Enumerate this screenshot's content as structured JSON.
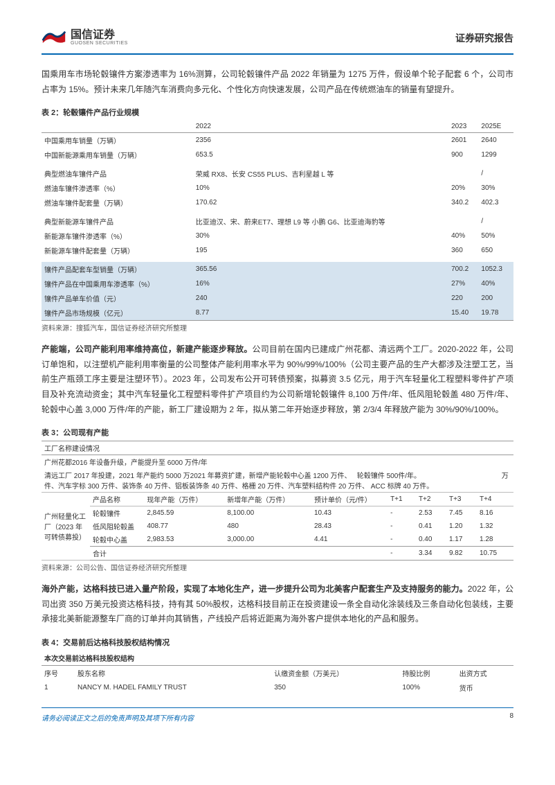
{
  "header": {
    "brand_cn": "国信证券",
    "brand_en": "GUOSEN SECURITIES",
    "report_type": "证券研究报告"
  },
  "p1": "国乘用车市场轮毂镶件方案渗透率为 16%测算，公司轮毂镶件产品 2022 年销量为 1275 万件，假设单个轮子配套 6 个，公司市占率为 15%。预计未来几年随汽车消费向多元化、个性化方向快速发展，公司产品在传统燃油车的销量有望提升。",
  "t2": {
    "title": "表 2：轮毂镶件产品行业规模",
    "cols": [
      "",
      "2022",
      "2023",
      "2025E"
    ],
    "rows1": [
      [
        "中国乘用车销量（万辆）",
        "2356",
        "2601",
        "2640"
      ],
      [
        "中国新能源乘用车销量（万辆）",
        "653.5",
        "900",
        "1299"
      ]
    ],
    "rows2": [
      [
        "典型燃油车镶件产品",
        "荣威 RX8、长安 CS55  PLUS、吉利星越 L 等",
        "",
        "/"
      ],
      [
        "燃油车镶件渗透率（%）",
        "10%",
        "20%",
        "30%"
      ],
      [
        "燃油车镶件配套量（万辆）",
        "170.62",
        "340.2",
        "402.3"
      ]
    ],
    "rows3": [
      [
        "典型新能源车镶件产品",
        "比亚迪汉、宋、蔚来ET7、理想 L9 等 小鹏 G6、比亚迪海豹等",
        "",
        "/"
      ],
      [
        "新能源车镶件渗透率（%）",
        "30%",
        "40%",
        "50%"
      ],
      [
        "新能源车镶件配套量（万辆）",
        "195",
        "360",
        "650"
      ]
    ],
    "rows_hl": [
      [
        "镶件产品配套车型销量（万辆）",
        "365.56",
        "700.2",
        "1052.3"
      ],
      [
        "镶件产品在中国乘用车渗透率（%）",
        "16%",
        "27%",
        "40%"
      ],
      [
        "镶件产品单车价值（元）",
        "240",
        "220",
        "200"
      ],
      [
        "镶件产品市场规模（亿元）",
        "8.77",
        "15.40",
        "19.78"
      ]
    ],
    "source": "资料来源：搜狐汽车，国信证券经济研究所整理"
  },
  "p2_head": "产能端，公司产能利用率维持高位，新建产能逐步释放。",
  "p2": "公司目前在国内已建成广州花都、清远两个工厂。2020-2022 年，公司订单饱和，以注塑机产能利用率衡量的公司整体产能利用率水平为 90%/99%/100%（公司主要产品的生产大都涉及注塑工艺，当前生产瓶颈工序主要是注塑环节）。2023 年，公司发布公开可转债预案，拟募资 3.5 亿元，用于汽车轻量化工程塑料零件扩产项目及补充流动资金；其中汽车轻量化工程塑料零件扩产项目约为公司新增轮毂镶件 8,100 万件/年、低风阻轮毂盖 480 万件/年、轮毂中心盖 3,000 万件/年的产能，新工厂建设期为 2 年，拟从第二年开始逐步释放，第 2/3/4 年释放产能为 30%/90%/100%。",
  "t3": {
    "title": "表 3：公司现有产能",
    "hdr": "工厂名称建设情况",
    "row_gz": "广州花都2016 年设备升级，产能提升至 6000 万件/年",
    "row_qy": "清远工厂 2017 年投建，2021 年产能约 5000 万2021 年募资扩建，新增产能轮毂中心盖 1200 万件、   轮毂镶件 500件/年。                                          万件、汽车字标 300 万件、装饰条 40 万件、铝板装饰条 40 万件、格栅 20 万件、汽车塑料结构件 20 万件、 ACC 标牌 40 万件。",
    "sub_cols": [
      "广州轻量化工厂（2023 年可转债募投）",
      "产品名称",
      "现年产能（万件）",
      "新增年产能（万件）",
      "预计单价（元/件）",
      "T+1",
      "T+2",
      "T+3",
      "T+4"
    ],
    "sub_rows": [
      [
        "轮毂镶件",
        "2,845.59",
        "8,100.00",
        "10.43",
        "-",
        "2.53",
        "7.45",
        "8.16"
      ],
      [
        "低风阻轮毂盖",
        "408.77",
        "480",
        "28.43",
        "-",
        "0.41",
        "1.20",
        "1.32"
      ],
      [
        "轮毂中心盖",
        "2,983.53",
        "3,000.00",
        "4.41",
        "-",
        "0.40",
        "1.17",
        "1.28"
      ],
      [
        "合计",
        "",
        "",
        "",
        "-",
        "3.34",
        "9.82",
        "10.75"
      ]
    ],
    "source": "资料来源：公司公告、国信证券经济研究所整理"
  },
  "p3_head": "海外产能，达格科技已进入量产阶段，实现了本地化生产，进一步提升公司为北美客户配套生产及支持服务的能力。",
  "p3": "2022 年，公司出资 350 万美元投资达格科技，持有其 50%股权，达格科技目前正在投资建设一条全自动化涂装线及三条自动化包装线，主要承接北美新能源整车厂商的订单并向其销售，产线投产后将近距离为海外客户提供本地化的产品和服务。",
  "t4": {
    "title": "表 4：交易前后达格科技股权结构情况",
    "hdr": "本次交易前达格科技股权结构",
    "cols": [
      "序号",
      "股东名称",
      "认缴资金额（万美元）",
      "持股比例",
      "出资方式"
    ],
    "row": [
      "1",
      "NANCY M. HADEL FAMILY TRUST",
      "350",
      "100%",
      "货币"
    ]
  },
  "footer": {
    "disclaimer": "请务必阅读正文之后的免责声明及其项下所有内容",
    "page": "8"
  }
}
